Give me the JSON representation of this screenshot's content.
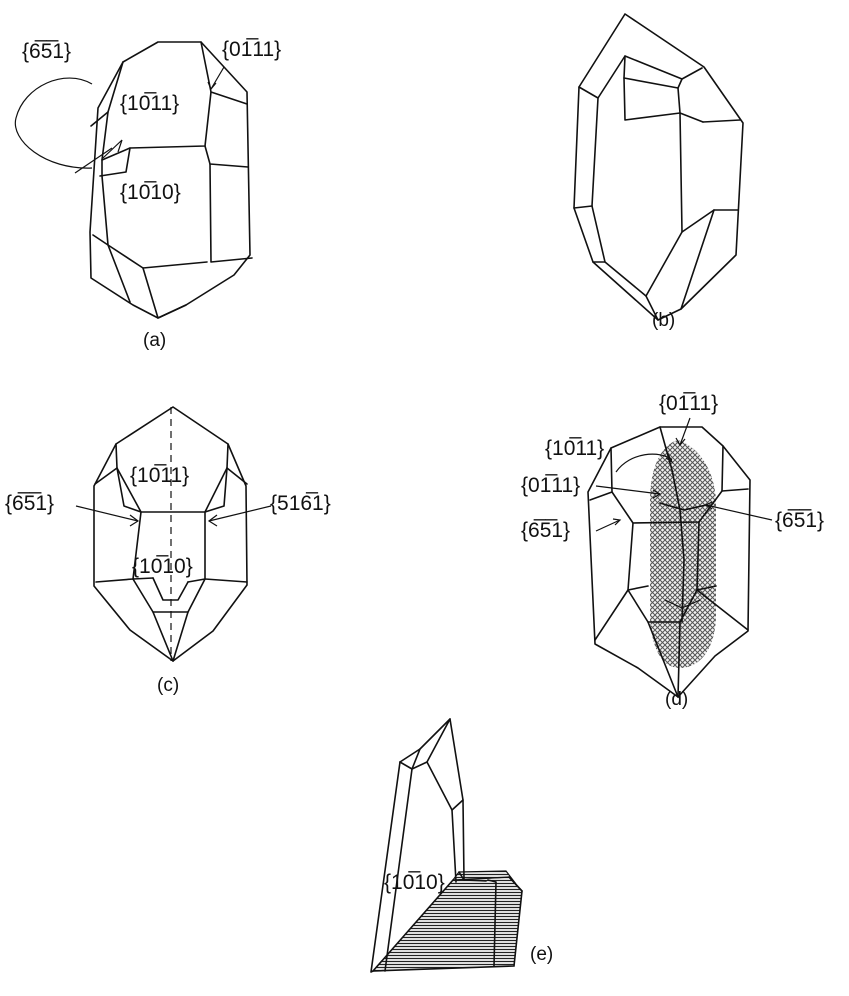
{
  "panels": {
    "a": {
      "caption": "(a)",
      "labels": {
        "twin_face": "{6̅5̅1}",
        "rhomb_top": "{10̅11}",
        "rhomb_side": "{01̅11}",
        "prism": "{10̅10}"
      }
    },
    "b": {
      "caption": "(b)"
    },
    "c": {
      "caption": "(c)",
      "labels": {
        "rhomb_top": "{10̅11}",
        "prism": "{10̅10}",
        "left_face": "{6̅5̅1}",
        "right_face": "{516̅1}"
      }
    },
    "d": {
      "caption": "(d)",
      "labels": {
        "top_right": "{01̅11}",
        "upper_left": "{10̅11}",
        "mid_left": "{01̅11}",
        "lower_left": "{6̅5̅1}",
        "right": "{6̅5̅1}"
      }
    },
    "e": {
      "caption": "(e)",
      "labels": {
        "prism": "{10̅10}"
      }
    }
  }
}
